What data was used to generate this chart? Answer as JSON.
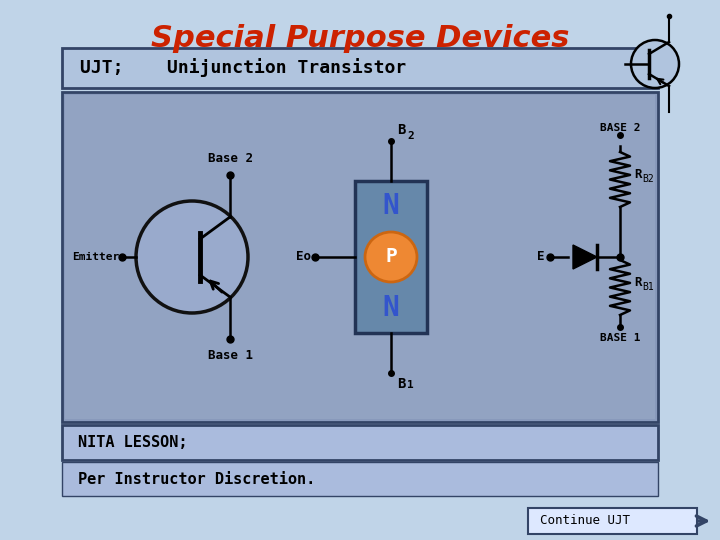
{
  "title": "Special Purpose Devices",
  "title_color": "#cc2200",
  "title_fontsize": 22,
  "subtitle": "UJT;    Unijunction Transistor",
  "bg_color_top": "#c8ddf0",
  "bg_color_bot": "#ddeeff",
  "header_bg": "#b0c4de",
  "main_bg": "#8899bb",
  "nita_bg": "#aabbdd",
  "nita_text": "NITA LESSON;",
  "nita_text2": "Per Instructor Discretion.",
  "continue_text": "Continue UJT"
}
